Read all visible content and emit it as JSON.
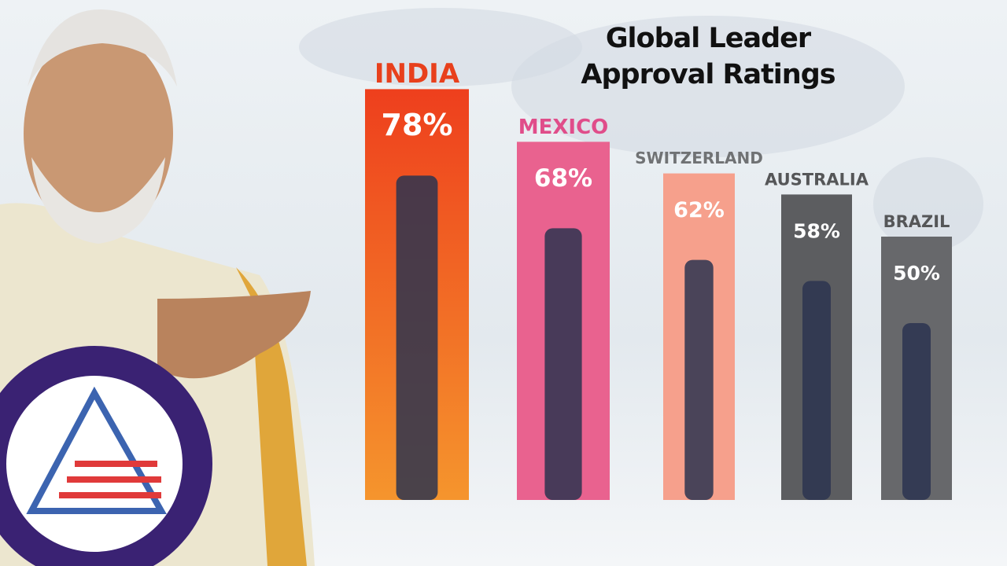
{
  "chart_data": {
    "type": "bar",
    "title": "Global Leader Approval Ratings",
    "categories": [
      "INDIA",
      "MEXICO",
      "SWITZERLAND",
      "AUSTRALIA",
      "BRAZIL"
    ],
    "values": [
      78,
      68,
      62,
      58,
      50
    ],
    "value_labels": [
      "78%",
      "68%",
      "62%",
      "58%",
      "50%"
    ],
    "colors": [
      "#f1501f",
      "#e9628f",
      "#f6a08c",
      "#5c5d60",
      "#67686b"
    ]
  }
}
